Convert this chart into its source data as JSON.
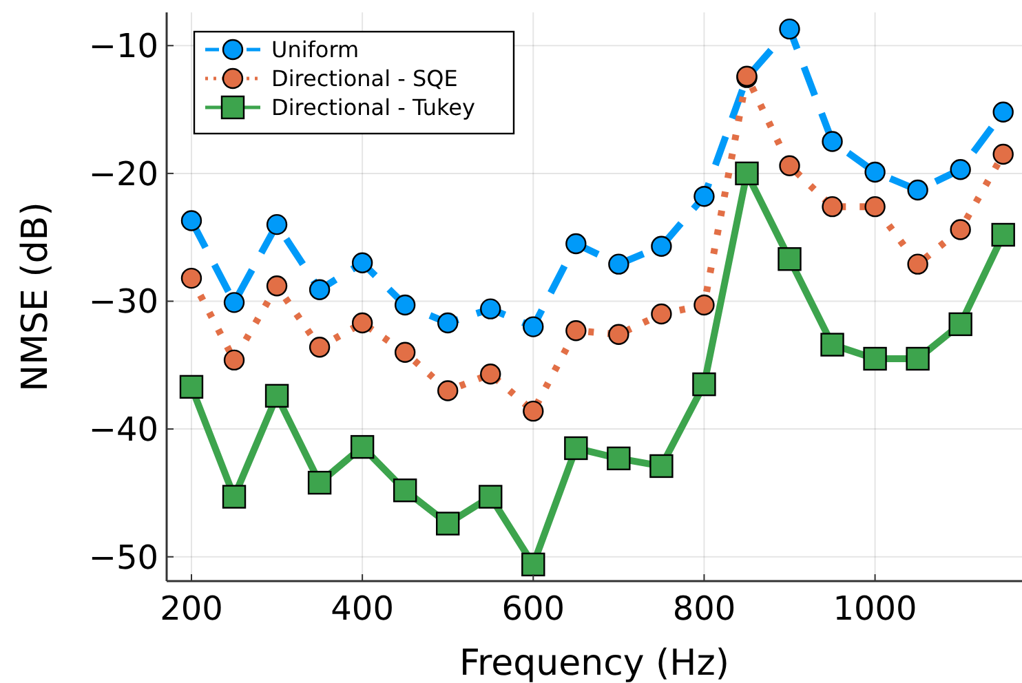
{
  "chart_data": {
    "type": "line",
    "xlabel": "Frequency (Hz)",
    "ylabel": "NMSE (dB)",
    "x": [
      200,
      250,
      300,
      350,
      400,
      450,
      500,
      550,
      600,
      650,
      700,
      750,
      800,
      850,
      900,
      950,
      1000,
      1050,
      1100,
      1150
    ],
    "xlim": [
      171,
      1172
    ],
    "xticks": [
      200,
      400,
      600,
      800,
      1000
    ],
    "ylim": [
      -51.9,
      -7.4
    ],
    "yticks": [
      {
        "value": -50,
        "label": "−50"
      },
      {
        "value": -40,
        "label": "−40"
      },
      {
        "value": -30,
        "label": "−30"
      },
      {
        "value": -20,
        "label": "−20"
      },
      {
        "value": -10,
        "label": "−10"
      }
    ],
    "grid": true,
    "legend": "top left",
    "series": [
      {
        "name": "Uniform",
        "color": "#009af9",
        "marker": "circle",
        "line_style": "dashed",
        "values": [
          -23.7,
          -30.1,
          -24.0,
          -29.1,
          -27.0,
          -30.3,
          -31.7,
          -30.6,
          -32.0,
          -25.5,
          -27.1,
          -25.7,
          -21.8,
          -12.5,
          -8.7,
          -17.5,
          -19.9,
          -21.3,
          -19.7,
          -15.2
        ]
      },
      {
        "name": "Directional - SQE",
        "color": "#e26f46",
        "marker": "circle",
        "line_style": "dotted",
        "values": [
          -28.2,
          -34.6,
          -28.8,
          -33.6,
          -31.7,
          -34.0,
          -37.0,
          -35.7,
          -38.6,
          -32.3,
          -32.6,
          -31.0,
          -30.3,
          -12.4,
          -19.4,
          -22.6,
          -22.6,
          -27.1,
          -24.4,
          -18.5
        ]
      },
      {
        "name": "Directional - Tukey",
        "color": "#3da44d",
        "marker": "square",
        "line_style": "solid",
        "values": [
          -36.7,
          -45.3,
          -37.4,
          -44.2,
          -41.4,
          -44.8,
          -47.4,
          -45.3,
          -50.6,
          -41.5,
          -42.3,
          -42.9,
          -36.5,
          -20.0,
          -26.7,
          -33.4,
          -34.5,
          -34.5,
          -31.8,
          -24.8
        ]
      }
    ]
  }
}
